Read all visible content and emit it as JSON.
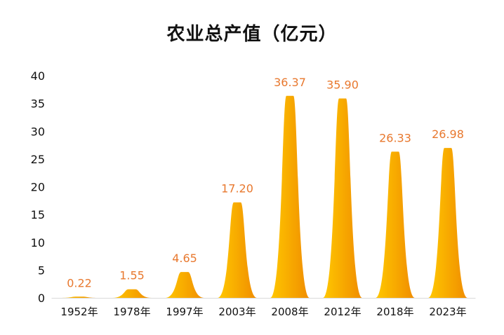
{
  "chart_data": {
    "type": "bar",
    "title": "农业总产值（亿元）",
    "categories": [
      "1952年",
      "1978年",
      "1997年",
      "2003年",
      "2008年",
      "2012年",
      "2018年",
      "2023年"
    ],
    "values": [
      0.22,
      1.55,
      4.65,
      17.2,
      36.37,
      35.9,
      26.33,
      26.98
    ],
    "value_labels": [
      "0.22",
      "1.55",
      "4.65",
      "17.20",
      "36.37",
      "35.90",
      "26.33",
      "26.98"
    ],
    "yticks": [
      "0",
      "5",
      "10",
      "15",
      "20",
      "25",
      "30",
      "35",
      "40"
    ],
    "ylim": [
      0,
      40
    ],
    "xlabel": "",
    "ylabel": "",
    "grid": false,
    "legend": "none",
    "bar_shape": "peak",
    "colors": {
      "bar_light": "#FFC800",
      "bar_dark": "#F08C00",
      "data_label": "#E8782E",
      "text": "#111111",
      "axis": "#D9D9D9"
    }
  }
}
